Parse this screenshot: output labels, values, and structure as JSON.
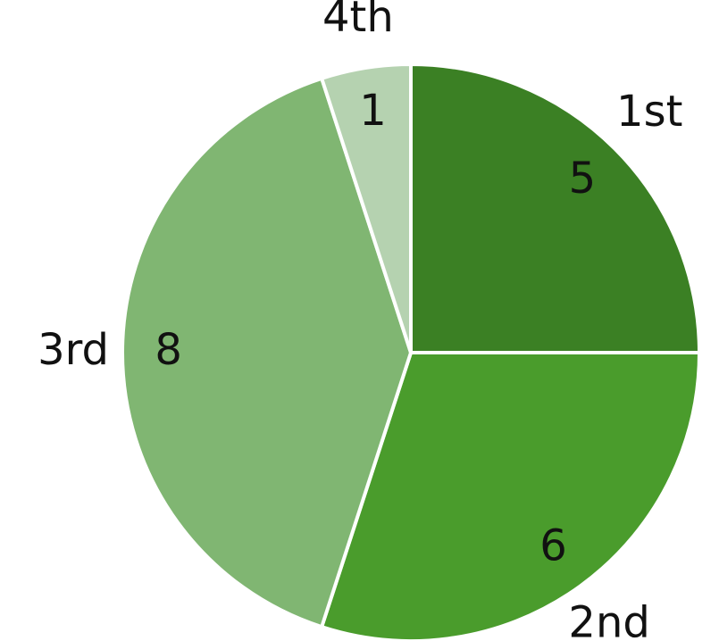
{
  "chart_data": {
    "type": "pie",
    "categories": [
      "1st",
      "2nd",
      "3rd",
      "4th"
    ],
    "values": [
      5,
      6,
      8,
      1
    ],
    "colors": [
      "#3b8024",
      "#4a9c2c",
      "#80b672",
      "#b5d2b0"
    ]
  }
}
